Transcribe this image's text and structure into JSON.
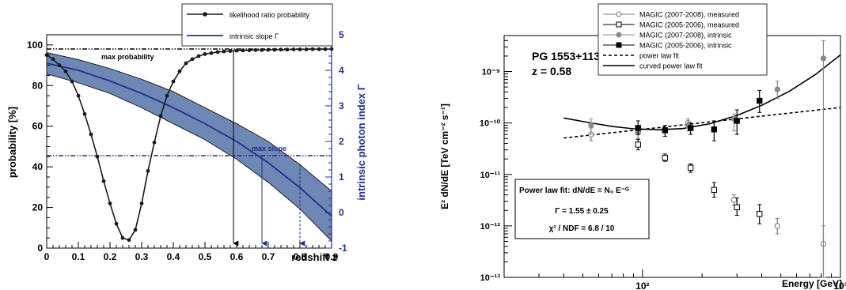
{
  "chart_data": [
    {
      "type": "line",
      "xlabel": "redshift z",
      "ylabel": "probability [%]",
      "y2label": "intrinsic photon index Γ",
      "xlim": [
        0,
        0.9
      ],
      "ylim": [
        0,
        105
      ],
      "y2lim": [
        -1,
        5
      ],
      "xticks": [
        "0",
        "0.1",
        "0.2",
        "0.3",
        "0.4",
        "0.5",
        "0.6",
        "0.7",
        "0.8",
        "0.9"
      ],
      "yticks": [
        "0",
        "20",
        "40",
        "60",
        "80",
        "100"
      ],
      "y2ticks": [
        "-1",
        "0",
        "1",
        "2",
        "3",
        "4",
        "5"
      ],
      "legend": [
        "likelihood ratio probability",
        "intrinsic slope Γ"
      ],
      "annotations": [
        "max probability",
        "max slope"
      ],
      "colors": {
        "probability": "#1a1a1a",
        "slope": "#1f2f8f",
        "band": "#6f87b4"
      },
      "series": [
        {
          "name": "likelihood ratio probability",
          "x": [
            0.0,
            0.02,
            0.04,
            0.06,
            0.08,
            0.1,
            0.12,
            0.14,
            0.16,
            0.18,
            0.2,
            0.22,
            0.24,
            0.26,
            0.28,
            0.3,
            0.32,
            0.34,
            0.36,
            0.38,
            0.4,
            0.42,
            0.44,
            0.46,
            0.48,
            0.5,
            0.52,
            0.54,
            0.56,
            0.58,
            0.6,
            0.62,
            0.64,
            0.66,
            0.68,
            0.7,
            0.72,
            0.74,
            0.76,
            0.78,
            0.8,
            0.82,
            0.84,
            0.86,
            0.88,
            0.9
          ],
          "values": [
            95,
            93,
            90,
            87,
            82,
            75,
            66,
            56,
            45,
            33,
            22,
            12,
            5,
            4,
            9,
            22,
            38,
            52,
            65,
            75,
            82,
            87,
            91,
            93,
            94.5,
            95.5,
            96,
            96.5,
            96.8,
            97,
            97.2,
            97.3,
            97.4,
            97.5,
            97.5,
            97.6,
            97.6,
            97.7,
            97.7,
            97.8,
            97.8,
            97.8,
            97.9,
            97.9,
            97.9,
            98
          ]
        },
        {
          "name": "intrinsic slope Γ",
          "x": [
            0.0,
            0.1,
            0.2,
            0.3,
            0.4,
            0.5,
            0.6,
            0.7,
            0.8,
            0.9
          ],
          "values": [
            4.2,
            4.0,
            3.7,
            3.35,
            2.95,
            2.5,
            2.0,
            1.4,
            0.7,
            -0.1
          ],
          "band_upper": [
            4.5,
            4.3,
            4.05,
            3.75,
            3.4,
            2.95,
            2.5,
            2.0,
            1.35,
            0.6
          ],
          "band_lower": [
            3.9,
            3.65,
            3.35,
            2.95,
            2.5,
            2.05,
            1.5,
            0.85,
            0.1,
            -0.8
          ]
        }
      ],
      "reference_lines": [
        {
          "label": "max probability",
          "value": 98,
          "axis": "y"
        },
        {
          "label": "max slope",
          "value": 1.6,
          "axis": "y2"
        }
      ],
      "markers_z": [
        0.59,
        0.68,
        0.8
      ]
    },
    {
      "type": "scatter",
      "xlabel": "Energy [GeV]",
      "ylabel": "E² dN/dE [TeV cm⁻² s⁻¹]",
      "xscale": "log",
      "yscale": "log",
      "xlim": [
        20,
        1000
      ],
      "ylim": [
        1e-13,
        5e-09
      ],
      "xticks": [
        "10²",
        "10³"
      ],
      "yticks": [
        "10⁻¹³",
        "10⁻¹²",
        "10⁻¹¹",
        "10⁻¹⁰",
        "10⁻⁹"
      ],
      "source_label": {
        "name": "PG 1553+113",
        "redshift": "z = 0.58"
      },
      "fit_box": {
        "title": "Power law fit: dN/dE = N₀ E⁻ᴳ",
        "gamma": "Γ = 1.55 ± 0.25",
        "chi2": "χ² / NDF = 6.8 / 10"
      },
      "legend": [
        "MAGIC (2007-2008), measured",
        "MAGIC (2005-2006), measured",
        "MAGIC (2007-2008), intrinsic",
        "MAGIC (2005-2006), intrinsic",
        "power law fit",
        "curved power law fit"
      ],
      "colors": {
        "m0708": "#7a7a7a",
        "m0506": "#000000",
        "gray_intr": "#8a8a8a",
        "black_intr": "#000000"
      },
      "series": [
        {
          "name": "MAGIC (2007-2008), measured",
          "marker": "open-circle",
          "x": [
            55,
            95,
            170,
            290,
            480,
            820
          ],
          "y": [
            6e-11,
            6.5e-11,
            1e-10,
            3.2e-12,
            1e-12,
            4.5e-13
          ],
          "yerr_low": [
            4.5e-11,
            5e-11,
            8e-11,
            2.5e-12,
            7e-13,
            1e-13
          ],
          "yerr_high": [
            8e-11,
            8e-11,
            1.2e-10,
            4e-12,
            1.4e-12,
            1e-12
          ]
        },
        {
          "name": "MAGIC (2005-2006), measured",
          "marker": "open-square",
          "x": [
            95,
            130,
            175,
            230,
            300,
            390
          ],
          "y": [
            3.8e-11,
            2.1e-11,
            1.35e-11,
            5e-12,
            2.3e-12,
            1.7e-12
          ],
          "yerr_low": [
            3e-11,
            1.8e-11,
            1.1e-11,
            3.6e-12,
            1.6e-12,
            1.1e-12
          ],
          "yerr_high": [
            4.8e-11,
            2.5e-11,
            1.6e-11,
            7e-12,
            3.5e-12,
            2.6e-12
          ]
        },
        {
          "name": "MAGIC (2007-2008), intrinsic",
          "marker": "filled-circle",
          "x": [
            55,
            95,
            170,
            290,
            480,
            820
          ],
          "y": [
            9e-11,
            7e-11,
            9e-11,
            1.2e-10,
            4.5e-10,
            1.8e-09
          ],
          "yerr_low": [
            6e-11,
            5e-11,
            7e-11,
            7e-11,
            3e-10,
            1e-13
          ],
          "yerr_high": [
            1.2e-10,
            9e-11,
            1.1e-10,
            1.5e-10,
            6.5e-10,
            4e-09
          ]
        },
        {
          "name": "MAGIC (2005-2006), intrinsic",
          "marker": "filled-square",
          "x": [
            95,
            130,
            175,
            230,
            300,
            390
          ],
          "y": [
            8e-11,
            7.2e-11,
            8e-11,
            7.5e-11,
            1.1e-10,
            2.7e-10
          ],
          "yerr_low": [
            6e-11,
            5.5e-11,
            6e-11,
            4.5e-11,
            6e-11,
            1.6e-10
          ],
          "yerr_high": [
            1.1e-10,
            9e-11,
            1e-10,
            1.1e-10,
            1.8e-10,
            4.3e-10
          ]
        }
      ],
      "fits": [
        {
          "name": "power law fit",
          "style": "dashed",
          "x": [
            40,
            1000
          ],
          "y": [
            5.1e-11,
            2e-10
          ]
        },
        {
          "name": "curved power law fit",
          "style": "solid",
          "x": [
            40,
            55,
            70,
            90,
            120,
            160,
            220,
            300,
            400,
            550,
            750,
            1000
          ],
          "y": [
            1.25e-10,
            1e-10,
            8.6e-11,
            7.7e-11,
            7.4e-11,
            7.8e-11,
            9.7e-11,
            1.4e-10,
            2.2e-10,
            4.1e-10,
            8.8e-10,
            2.1e-09
          ]
        }
      ]
    }
  ]
}
